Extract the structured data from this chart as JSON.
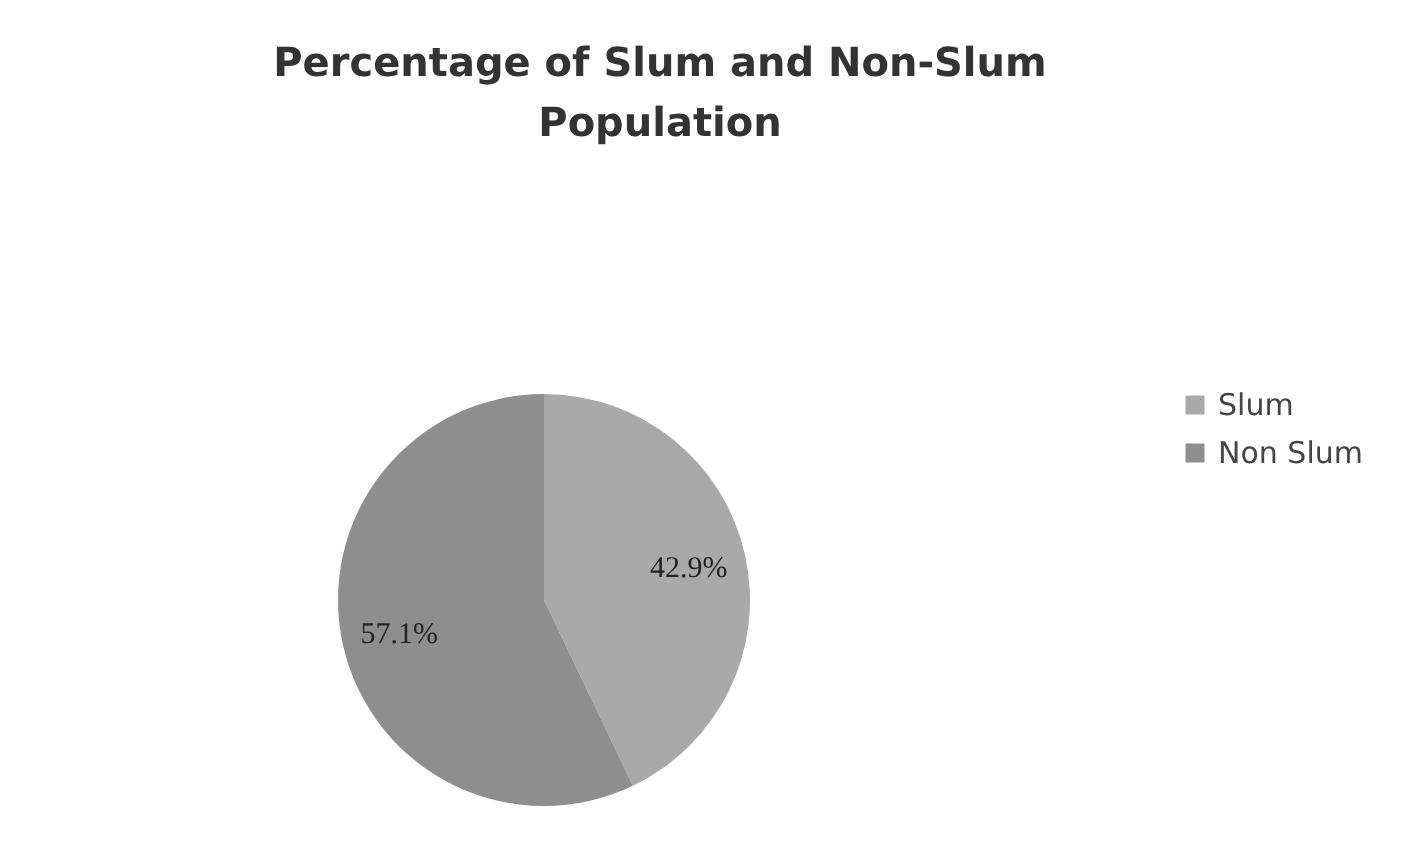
{
  "chart_data": {
    "type": "pie",
    "title": "Percentage of Slum and Non-Slum Population",
    "categories": [
      "Slum",
      "Non Slum"
    ],
    "values": [
      42.9,
      57.1
    ],
    "colors": [
      "#a9a9a9",
      "#8e8e8e"
    ],
    "value_labels": [
      "42.9%",
      "57.1%"
    ],
    "legend": "right"
  }
}
